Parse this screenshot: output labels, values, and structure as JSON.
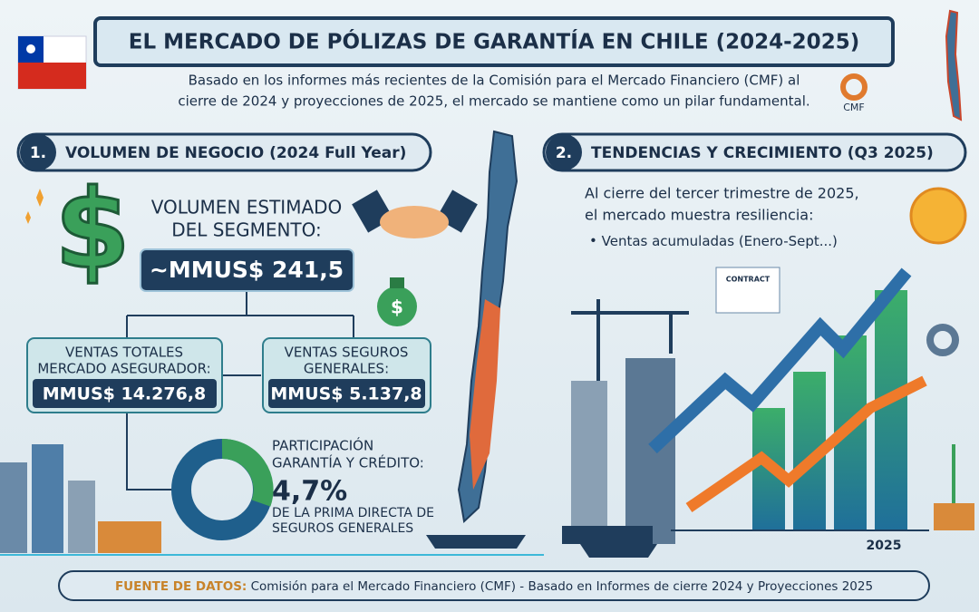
{
  "header": {
    "title": "EL MERCADO DE PÓLIZAS DE GARANTÍA EN CHILE (2024-2025)",
    "intro": [
      "Basado en los informes más recientes de la Comisión para el Mercado Financiero (CMF) al",
      "cierre de 2024 y proyecciones de 2025, el mercado se mantiene como un pilar fundamental."
    ],
    "logo": "CMF"
  },
  "sections": [
    {
      "number": "1.",
      "title": "VOLUMEN DE NEGOCIO (2024 Full Year)",
      "estimate": {
        "label": [
          "VOLUMEN ESTIMADO",
          "DEL SEGMENTO:"
        ],
        "value": "~MMUS$ 241,5"
      },
      "boxes": [
        {
          "label": [
            "VENTAS TOTALES",
            "MERCADO ASEGURADOR:"
          ],
          "value": "MMUS$ 14.276,8"
        },
        {
          "label": [
            "VENTAS SEGUROS",
            "GENERALES:"
          ],
          "value": "MMUS$ 5.137,8"
        }
      ],
      "share": {
        "label": [
          "PARTICIPACIÓN",
          "GARANTÍA Y CRÉDITO:"
        ],
        "value": "4,7%",
        "note": [
          "DE LA PRIMA DIRECTA DE",
          "SEGUROS GENERALES"
        ]
      }
    },
    {
      "number": "2.",
      "title": "TENDENCIAS Y CRECIMIENTO (Q3 2025)",
      "text": [
        "Al cierre del tercer trimestre de 2025,",
        "el mercado muestra resiliencia:"
      ],
      "bullet": "Ventas acumuladas (Enero-Sept...)",
      "contract": "CONTRACT",
      "year": "2025"
    }
  ],
  "footer": {
    "label": "FUENTE DE DATOS:",
    "text": " Comisión para el Mercado Financiero (CMF) - Basado en Informes de cierre 2024 y Proyecciones 2025"
  }
}
